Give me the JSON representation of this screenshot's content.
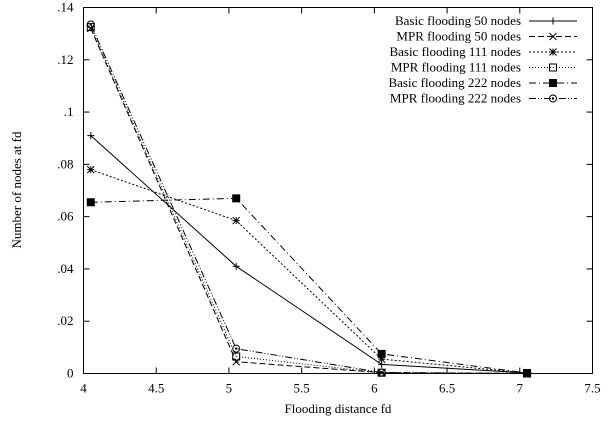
{
  "chart_data": {
    "type": "line",
    "xlabel": "Flooding distance fd",
    "ylabel": "Number of nodes at fd",
    "xlim": [
      4,
      7.5
    ],
    "ylim": [
      0,
      0.14
    ],
    "x_ticks": [
      "4",
      "4.5",
      "5",
      "5.5",
      "6",
      "6.5",
      "7",
      "7.5"
    ],
    "y_ticks": [
      "0",
      ".02",
      ".04",
      ".06",
      ".08",
      ".1",
      ".12",
      ".14"
    ],
    "grid": false,
    "legend_position": "top-right",
    "series": [
      {
        "name": "Basic flooding 50 nodes",
        "marker": "plus",
        "dash": "solid",
        "x": [
          4.05,
          5.05,
          6.05,
          7.05
        ],
        "y": [
          0.091,
          0.041,
          0.0035,
          0.0002
        ]
      },
      {
        "name": "MPR flooding 50 nodes",
        "marker": "cross",
        "dash": "dashed",
        "x": [
          4.05,
          5.05,
          6.05,
          7.05
        ],
        "y": [
          0.132,
          0.0045,
          0.0003,
          0.0
        ]
      },
      {
        "name": "Basic flooding 111 nodes",
        "marker": "star",
        "dash": "dotted",
        "x": [
          4.05,
          5.05,
          6.05,
          7.05
        ],
        "y": [
          0.078,
          0.0585,
          0.0055,
          0.0002
        ]
      },
      {
        "name": "MPR flooding 111 nodes",
        "marker": "square-open",
        "dash": "fine-dotted",
        "x": [
          4.05,
          5.05,
          6.05,
          7.05
        ],
        "y": [
          0.1325,
          0.0065,
          0.0003,
          0.0
        ]
      },
      {
        "name": "Basic flooding 222 nodes",
        "marker": "square-filled",
        "dash": "dash-dot",
        "x": [
          4.05,
          5.05,
          6.05,
          7.05
        ],
        "y": [
          0.0655,
          0.067,
          0.0075,
          0.0002
        ]
      },
      {
        "name": "MPR flooding 222 nodes",
        "marker": "circle-open",
        "dash": "dash-dot-dot",
        "x": [
          4.05,
          5.05,
          6.05,
          7.05
        ],
        "y": [
          0.1335,
          0.0095,
          0.0004,
          0.0
        ]
      }
    ]
  }
}
